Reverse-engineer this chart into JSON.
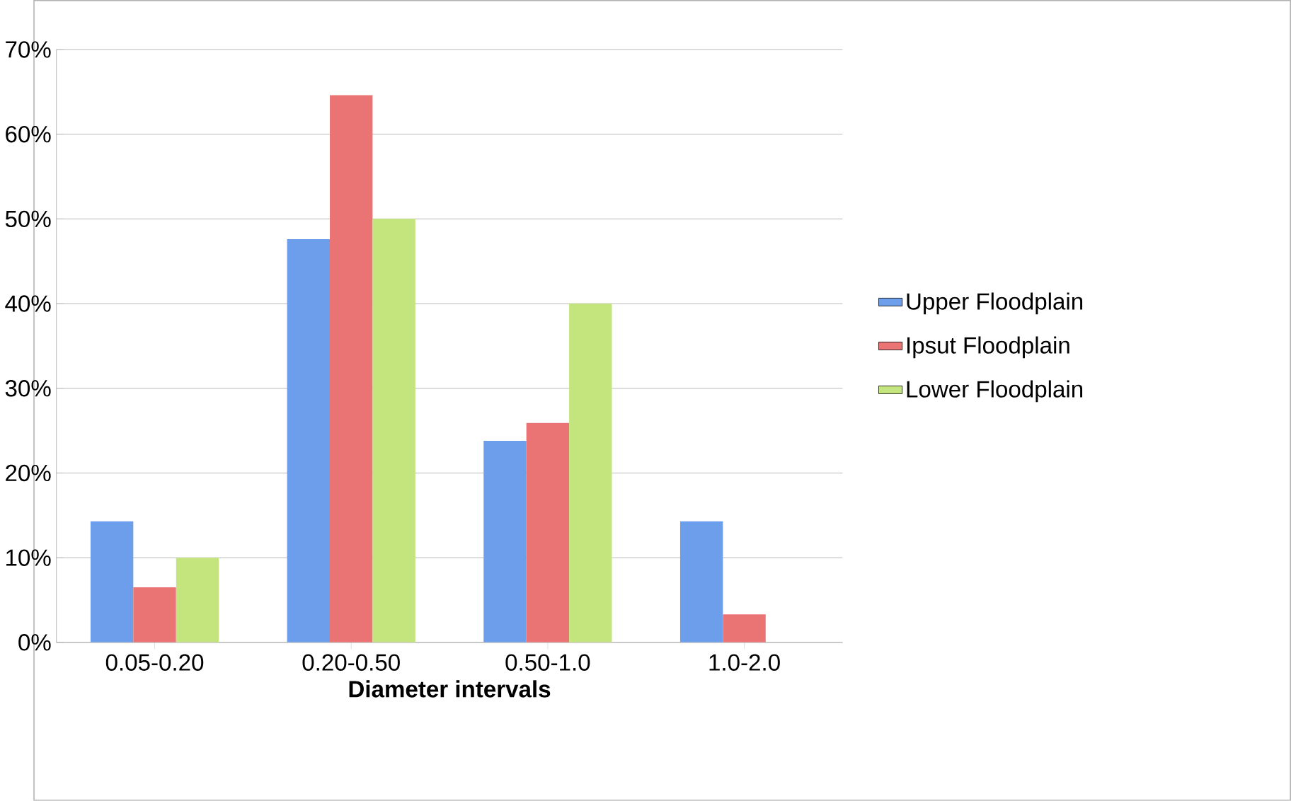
{
  "chart_data": {
    "type": "bar",
    "xlabel": "Diameter intervals",
    "categories": [
      "0.05-0.20",
      "0.20-0.50",
      "0.50-1.0",
      "1.0-2.0"
    ],
    "series": [
      {
        "name": "Upper Floodplain",
        "color": "#6d9eeb",
        "values": [
          14.3,
          47.6,
          23.8,
          14.3
        ]
      },
      {
        "name": "Ipsut Floodplain",
        "color": "#ea7474",
        "values": [
          6.5,
          64.6,
          25.9,
          3.3
        ]
      },
      {
        "name": "Lower Floodplain",
        "color": "#c4e57e",
        "values": [
          10,
          50,
          40,
          0
        ]
      }
    ],
    "ylim": [
      0,
      70
    ],
    "yticks": [
      {
        "value": 0,
        "label": "0%"
      },
      {
        "value": 10,
        "label": "10%"
      },
      {
        "value": 20,
        "label": "20%"
      },
      {
        "value": 30,
        "label": "30%"
      },
      {
        "value": 40,
        "label": "40%"
      },
      {
        "value": 50,
        "label": "50%"
      },
      {
        "value": 60,
        "label": "60%"
      },
      {
        "value": 70,
        "label": "70%"
      }
    ],
    "grid": "y",
    "legend": "right"
  }
}
